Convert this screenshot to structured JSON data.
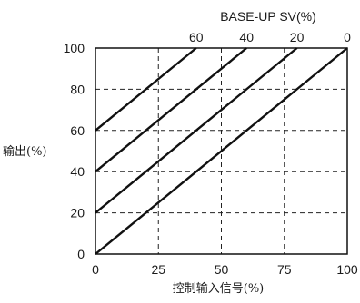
{
  "chart_data": {
    "type": "line",
    "xlabel": "控制输入信号(%)",
    "ylabel": "输出(%)",
    "xlim": [
      0,
      100
    ],
    "ylim": [
      0,
      100
    ],
    "x_ticks": [
      "0",
      "25",
      "50",
      "75",
      "100"
    ],
    "y_ticks": [
      "0",
      "20",
      "40",
      "60",
      "80",
      "100"
    ],
    "top_axis": {
      "label": "BASE-UP SV(%)",
      "ticks": [
        {
          "label": "60",
          "x": 40
        },
        {
          "label": "40",
          "x": 60
        },
        {
          "label": "20",
          "x": 80
        },
        {
          "label": "0",
          "x": 100
        }
      ]
    },
    "grid": "dashed",
    "series": [
      {
        "base_up": 60,
        "points": [
          [
            0,
            60
          ],
          [
            40,
            100
          ]
        ]
      },
      {
        "base_up": 40,
        "points": [
          [
            0,
            40
          ],
          [
            60,
            100
          ]
        ]
      },
      {
        "base_up": 20,
        "points": [
          [
            0,
            20
          ],
          [
            80,
            100
          ]
        ]
      },
      {
        "base_up": 0,
        "points": [
          [
            0,
            0
          ],
          [
            100,
            100
          ]
        ]
      }
    ],
    "colors": {
      "line": "#111111",
      "grid": "#222222"
    }
  }
}
